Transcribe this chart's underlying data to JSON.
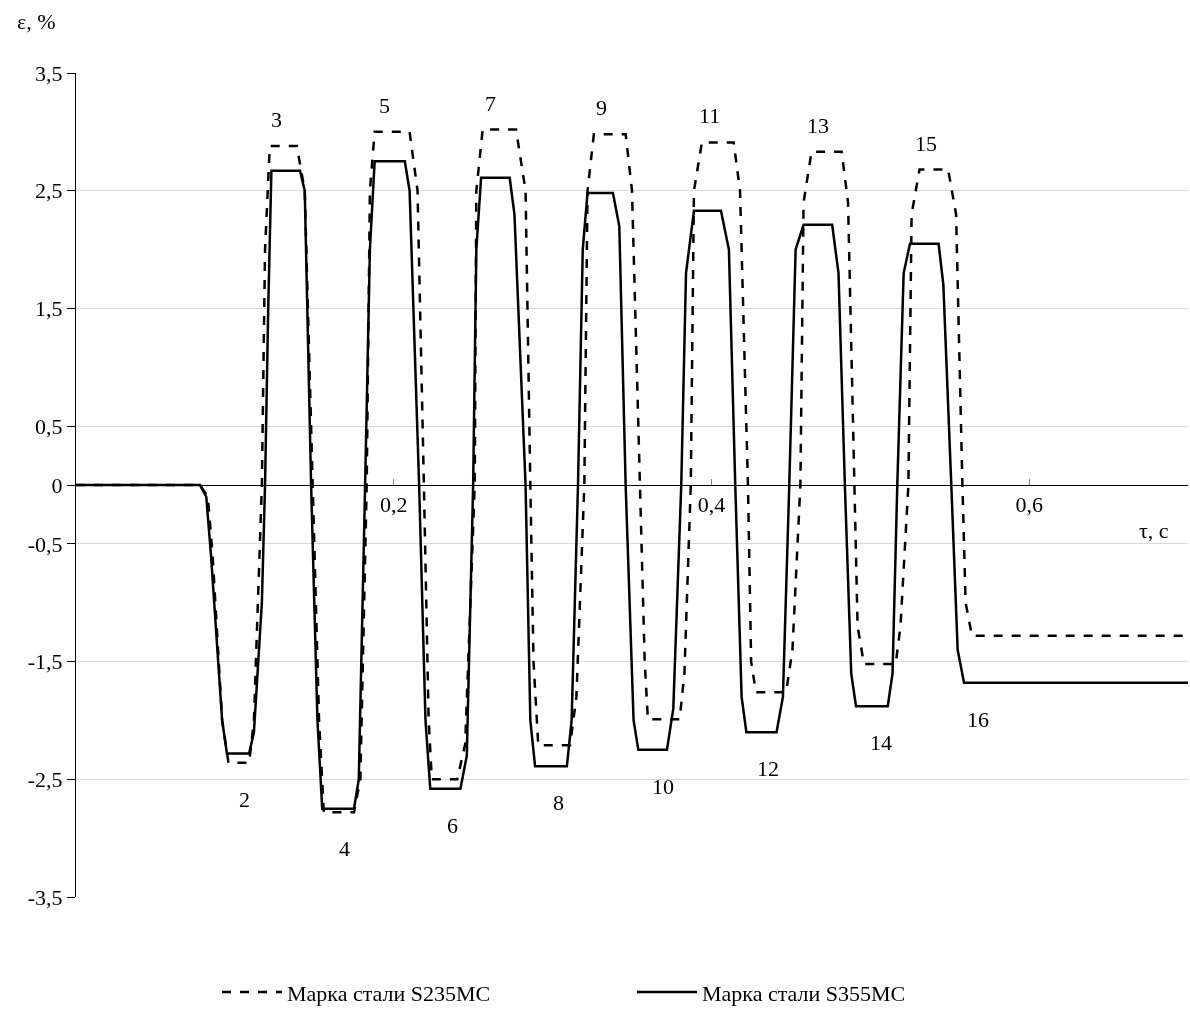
{
  "chart_data": {
    "type": "line",
    "xlabel": "τ, c",
    "ylabel": "ε, %",
    "xlim": [
      0,
      0.7
    ],
    "xticks": [
      {
        "value": 0.2,
        "label": "0,2"
      },
      {
        "value": 0.4,
        "label": "0,4"
      },
      {
        "value": 0.6,
        "label": "0,6"
      }
    ],
    "ylim": [
      -3.5,
      3.5
    ],
    "yticks": [
      {
        "value": 3.5,
        "label": "3,5"
      },
      {
        "value": 2.5,
        "label": "2,5"
      },
      {
        "value": 1.5,
        "label": "1,5"
      },
      {
        "value": 0.5,
        "label": "0,5"
      },
      0,
      {
        "value": -0.5,
        "label": "-0,5"
      },
      {
        "value": -1.5,
        "label": "-1,5"
      },
      {
        "value": -2.5,
        "label": "-2,5"
      },
      {
        "value": -3.5,
        "label": "-3,5"
      }
    ],
    "grid": "y",
    "legend": "bottom",
    "marker": "none",
    "series": [
      {
        "name": "Марка стали S235MC",
        "color": "#000000",
        "line_style": "dashed",
        "x": [
          0,
          0.078,
          0.083,
          0.086,
          0.092,
          0.096,
          0.109,
          0.112,
          0.117,
          0.119,
          0.122,
          0.139,
          0.144,
          0.149,
          0.153,
          0.156,
          0.175,
          0.179,
          0.183,
          0.185,
          0.188,
          0.21,
          0.215,
          0.219,
          0.222,
          0.224,
          0.24,
          0.245,
          0.251,
          0.252,
          0.256,
          0.277,
          0.283,
          0.286,
          0.288,
          0.291,
          0.311,
          0.315,
          0.32,
          0.322,
          0.326,
          0.346,
          0.35,
          0.355,
          0.358,
          0.36,
          0.38,
          0.383,
          0.387,
          0.389,
          0.394,
          0.414,
          0.418,
          0.423,
          0.425,
          0.428,
          0.447,
          0.451,
          0.456,
          0.458,
          0.463,
          0.482,
          0.486,
          0.49,
          0.492,
          0.496,
          0.516,
          0.519,
          0.524,
          0.526,
          0.531,
          0.549,
          0.554,
          0.558,
          0.56,
          0.564,
          0.7
        ],
        "values": [
          0,
          0,
          -0.1,
          -0.6,
          -2.0,
          -2.36,
          -2.36,
          -2.0,
          0,
          2.0,
          2.88,
          2.88,
          2.5,
          0,
          -2.0,
          -2.78,
          -2.78,
          -2.5,
          0,
          2.5,
          3.0,
          3.0,
          2.5,
          0,
          -2.0,
          -2.5,
          -2.5,
          -2.2,
          0,
          2.5,
          3.02,
          3.02,
          2.5,
          0,
          -1.5,
          -2.21,
          -2.21,
          -1.8,
          0,
          2.5,
          2.98,
          2.98,
          2.5,
          0,
          -1.5,
          -1.99,
          -1.99,
          -1.6,
          0,
          2.5,
          2.91,
          2.91,
          2.5,
          0,
          -1.5,
          -1.76,
          -1.76,
          -1.4,
          0,
          2.4,
          2.83,
          2.83,
          2.4,
          0,
          -1.2,
          -1.52,
          -1.52,
          -1.2,
          0,
          2.3,
          2.68,
          2.68,
          2.3,
          0,
          -1.0,
          -1.28,
          -1.28
        ]
      },
      {
        "name": "Марка стали S355MC",
        "color": "#000000",
        "line_style": "solid",
        "x": [
          0,
          0.078,
          0.082,
          0.085,
          0.092,
          0.095,
          0.109,
          0.112,
          0.117,
          0.119,
          0.121,
          0.123,
          0.141,
          0.144,
          0.148,
          0.152,
          0.155,
          0.175,
          0.178,
          0.182,
          0.185,
          0.188,
          0.207,
          0.21,
          0.216,
          0.22,
          0.223,
          0.242,
          0.246,
          0.25,
          0.252,
          0.255,
          0.273,
          0.276,
          0.283,
          0.286,
          0.289,
          0.309,
          0.312,
          0.316,
          0.319,
          0.322,
          0.338,
          0.342,
          0.346,
          0.351,
          0.354,
          0.372,
          0.376,
          0.381,
          0.384,
          0.389,
          0.406,
          0.411,
          0.415,
          0.419,
          0.422,
          0.441,
          0.445,
          0.449,
          0.453,
          0.458,
          0.476,
          0.48,
          0.484,
          0.488,
          0.491,
          0.511,
          0.514,
          0.517,
          0.521,
          0.525,
          0.543,
          0.546,
          0.551,
          0.555,
          0.559,
          0.7
        ],
        "values": [
          0,
          0,
          -0.1,
          -0.6,
          -2.0,
          -2.28,
          -2.28,
          -2.1,
          -1.0,
          0,
          1.5,
          2.67,
          2.67,
          2.5,
          0,
          -2.0,
          -2.75,
          -2.75,
          -2.5,
          0,
          2.0,
          2.75,
          2.75,
          2.5,
          0,
          -2.0,
          -2.58,
          -2.58,
          -2.3,
          0,
          2.0,
          2.61,
          2.61,
          2.3,
          0,
          -2.0,
          -2.39,
          -2.39,
          -2.0,
          0,
          2.0,
          2.48,
          2.48,
          2.2,
          0,
          -2.0,
          -2.25,
          -2.25,
          -1.9,
          0,
          1.8,
          2.33,
          2.33,
          2.0,
          0,
          -1.8,
          -2.1,
          -2.1,
          -1.8,
          0,
          2.0,
          2.21,
          2.21,
          1.8,
          0,
          -1.6,
          -1.88,
          -1.88,
          -1.6,
          0,
          1.8,
          2.05,
          2.05,
          1.7,
          0,
          -1.4,
          -1.68,
          -1.68
        ]
      }
    ],
    "annotations": [
      {
        "text": "2",
        "x": 0.102,
        "y": -2.36
      },
      {
        "text": "3",
        "x": 0.131,
        "y": 2.88
      },
      {
        "text": "4",
        "x": 0.165,
        "y": -2.78
      },
      {
        "text": "5",
        "x": 0.199,
        "y": 3.0
      },
      {
        "text": "6",
        "x": 0.233,
        "y": -2.58
      },
      {
        "text": "7",
        "x": 0.266,
        "y": 3.02
      },
      {
        "text": "8",
        "x": 0.3,
        "y": -2.39
      },
      {
        "text": "9",
        "x": 0.336,
        "y": 2.98
      },
      {
        "text": "10",
        "x": 0.366,
        "y": -2.25
      },
      {
        "text": "11",
        "x": 0.404,
        "y": 2.91
      },
      {
        "text": "12",
        "x": 0.432,
        "y": -2.1
      },
      {
        "text": "13",
        "x": 0.472,
        "y": 2.83
      },
      {
        "text": "14",
        "x": 0.503,
        "y": -1.88
      },
      {
        "text": "15",
        "x": 0.54,
        "y": 2.68
      },
      {
        "text": "16",
        "x": 0.564,
        "y": -1.68
      }
    ]
  }
}
